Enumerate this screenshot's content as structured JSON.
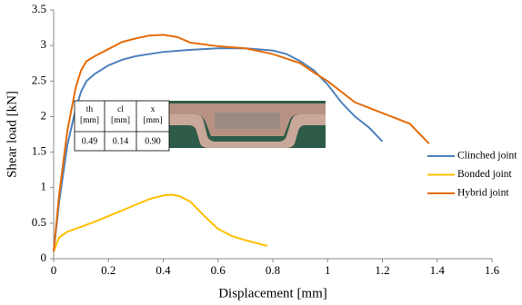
{
  "chart_data": {
    "type": "line",
    "xlabel": "Displacement [mm]",
    "ylabel": "Shear load [kN]",
    "xlim": [
      0,
      1.6
    ],
    "xticks": [
      0,
      0.2,
      0.4,
      0.6,
      0.8,
      1,
      1.2,
      1.4,
      1.6
    ],
    "ylim": [
      0,
      3.5
    ],
    "yticks": [
      0,
      0.5,
      1,
      1.5,
      2,
      2.5,
      3,
      3.5
    ],
    "grid": false,
    "legend": "right",
    "series": [
      {
        "name": "Clinched joint",
        "color": "#4f81bd",
        "x": [
          0,
          0.02,
          0.05,
          0.08,
          0.1,
          0.12,
          0.15,
          0.2,
          0.25,
          0.3,
          0.4,
          0.5,
          0.6,
          0.7,
          0.8,
          0.85,
          0.9,
          0.95,
          1.0,
          1.05,
          1.1,
          1.15,
          1.2
        ],
        "values": [
          0.1,
          0.8,
          1.6,
          2.1,
          2.35,
          2.5,
          2.6,
          2.72,
          2.8,
          2.85,
          2.91,
          2.94,
          2.96,
          2.96,
          2.93,
          2.88,
          2.78,
          2.65,
          2.45,
          2.2,
          2.0,
          1.85,
          1.65
        ]
      },
      {
        "name": "Bonded joint",
        "color": "#ffc000",
        "x": [
          0,
          0.02,
          0.05,
          0.1,
          0.15,
          0.2,
          0.25,
          0.3,
          0.35,
          0.4,
          0.43,
          0.46,
          0.5,
          0.55,
          0.6,
          0.65,
          0.7,
          0.78
        ],
        "values": [
          0.1,
          0.3,
          0.38,
          0.45,
          0.52,
          0.6,
          0.68,
          0.76,
          0.84,
          0.89,
          0.9,
          0.88,
          0.8,
          0.6,
          0.42,
          0.32,
          0.26,
          0.18
        ]
      },
      {
        "name": "Hybrid joint",
        "color": "#e46c0a",
        "x": [
          0,
          0.02,
          0.05,
          0.08,
          0.1,
          0.12,
          0.15,
          0.2,
          0.25,
          0.3,
          0.35,
          0.4,
          0.45,
          0.5,
          0.6,
          0.7,
          0.8,
          0.9,
          0.95,
          1.0,
          1.05,
          1.1,
          1.2,
          1.3,
          1.37
        ],
        "values": [
          0.1,
          0.9,
          1.8,
          2.4,
          2.65,
          2.78,
          2.85,
          2.95,
          3.05,
          3.1,
          3.14,
          3.15,
          3.12,
          3.04,
          2.99,
          2.96,
          2.88,
          2.75,
          2.62,
          2.5,
          2.35,
          2.2,
          2.05,
          1.9,
          1.62
        ]
      }
    ],
    "inset_table": {
      "header": [
        [
          "th",
          "[mm]"
        ],
        [
          "cl",
          "[mm]"
        ],
        [
          "x",
          "[mm]"
        ]
      ],
      "row": [
        "0.49",
        "0.14",
        "0.90"
      ]
    }
  }
}
